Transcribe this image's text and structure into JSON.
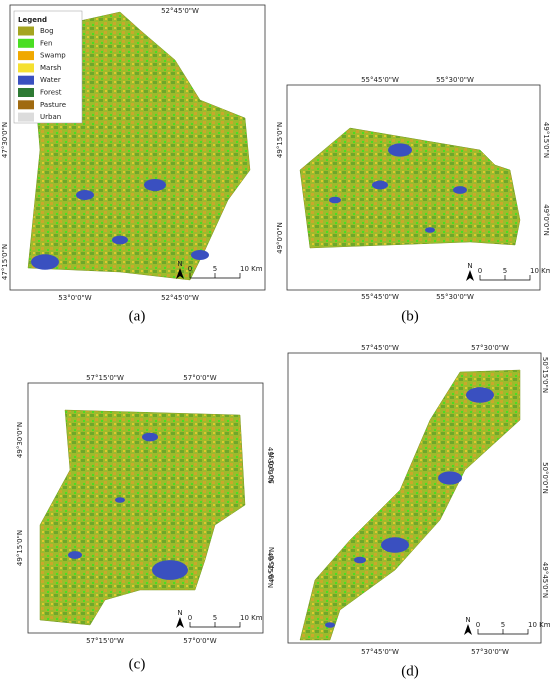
{
  "legend": {
    "title": "Legend",
    "items": [
      {
        "name": "Bog",
        "color": "#a5a520"
      },
      {
        "name": "Fen",
        "color": "#4ade22"
      },
      {
        "name": "Swamp",
        "color": "#f0a800"
      },
      {
        "name": "Marsh",
        "color": "#f5e030"
      },
      {
        "name": "Water",
        "color": "#3a50c0"
      },
      {
        "name": "Forest",
        "color": "#2e7a34"
      },
      {
        "name": "Pasture",
        "color": "#a06a10"
      },
      {
        "name": "Urban",
        "color": "#dcdcdc"
      }
    ]
  },
  "panels": [
    {
      "label": "(a)",
      "top": [
        "52°45'0\"W"
      ],
      "bottom": [
        "53°0'0\"W",
        "52°45'0\"W"
      ],
      "left": [
        "47°30'0\"N",
        "47°15'0\"N"
      ],
      "right": [],
      "north": "N",
      "scale": [
        "0",
        "5",
        "10 Km"
      ]
    },
    {
      "label": "(b)",
      "top": [
        "55°45'0\"W",
        "55°30'0\"W"
      ],
      "bottom": [
        "55°45'0\"W",
        "55°30'0\"W"
      ],
      "left": [
        "49°15'0\"N",
        "49°0'0\"N"
      ],
      "right": [
        "49°15'0\"N",
        "49°0'0\"N"
      ],
      "north": "N",
      "scale": [
        "0",
        "5",
        "10 Km"
      ]
    },
    {
      "label": "(c)",
      "top": [
        "57°15'0\"W",
        "57°0'0\"W"
      ],
      "bottom": [
        "57°15'0\"W",
        "57°0'0\"W"
      ],
      "left": [
        "49°30'0\"N",
        "49°15'0\"N"
      ],
      "right": [
        "49°30'0\"N",
        "49°15'0\"N"
      ],
      "north": "N",
      "scale": [
        "0",
        "5",
        "10 Km"
      ]
    },
    {
      "label": "(d)",
      "top": [
        "57°45'0\"W",
        "57°30'0\"W"
      ],
      "bottom": [
        "57°45'0\"W",
        "57°30'0\"W"
      ],
      "left": [
        "50°0'0\"N",
        "49°45'0\"N"
      ],
      "right": [
        "50°15'0\"N",
        "50°0'0\"N",
        "49°45'0\"N"
      ],
      "north": "N",
      "scale": [
        "0",
        "5",
        "10 Km"
      ]
    }
  ]
}
